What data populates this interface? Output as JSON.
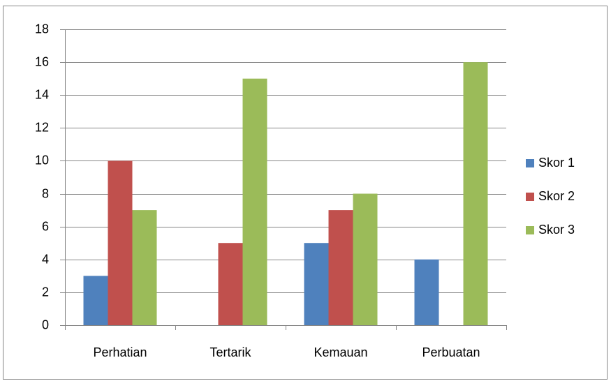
{
  "chart_data": {
    "type": "bar",
    "categories": [
      "Perhatian",
      "Tertarik",
      "Kemauan",
      "Perbuatan"
    ],
    "series": [
      {
        "name": "Skor 1",
        "color": "#4f81bd",
        "values": [
          3,
          0,
          5,
          4
        ]
      },
      {
        "name": "Skor 2",
        "color": "#c0504d",
        "values": [
          10,
          5,
          7,
          0
        ]
      },
      {
        "name": "Skor 3",
        "color": "#9bbb59",
        "values": [
          7,
          15,
          8,
          16
        ]
      }
    ],
    "ylim": [
      0,
      18
    ],
    "yticks": [
      0,
      2,
      4,
      6,
      8,
      10,
      12,
      14,
      16,
      18
    ],
    "grid": true,
    "legend": "right"
  }
}
